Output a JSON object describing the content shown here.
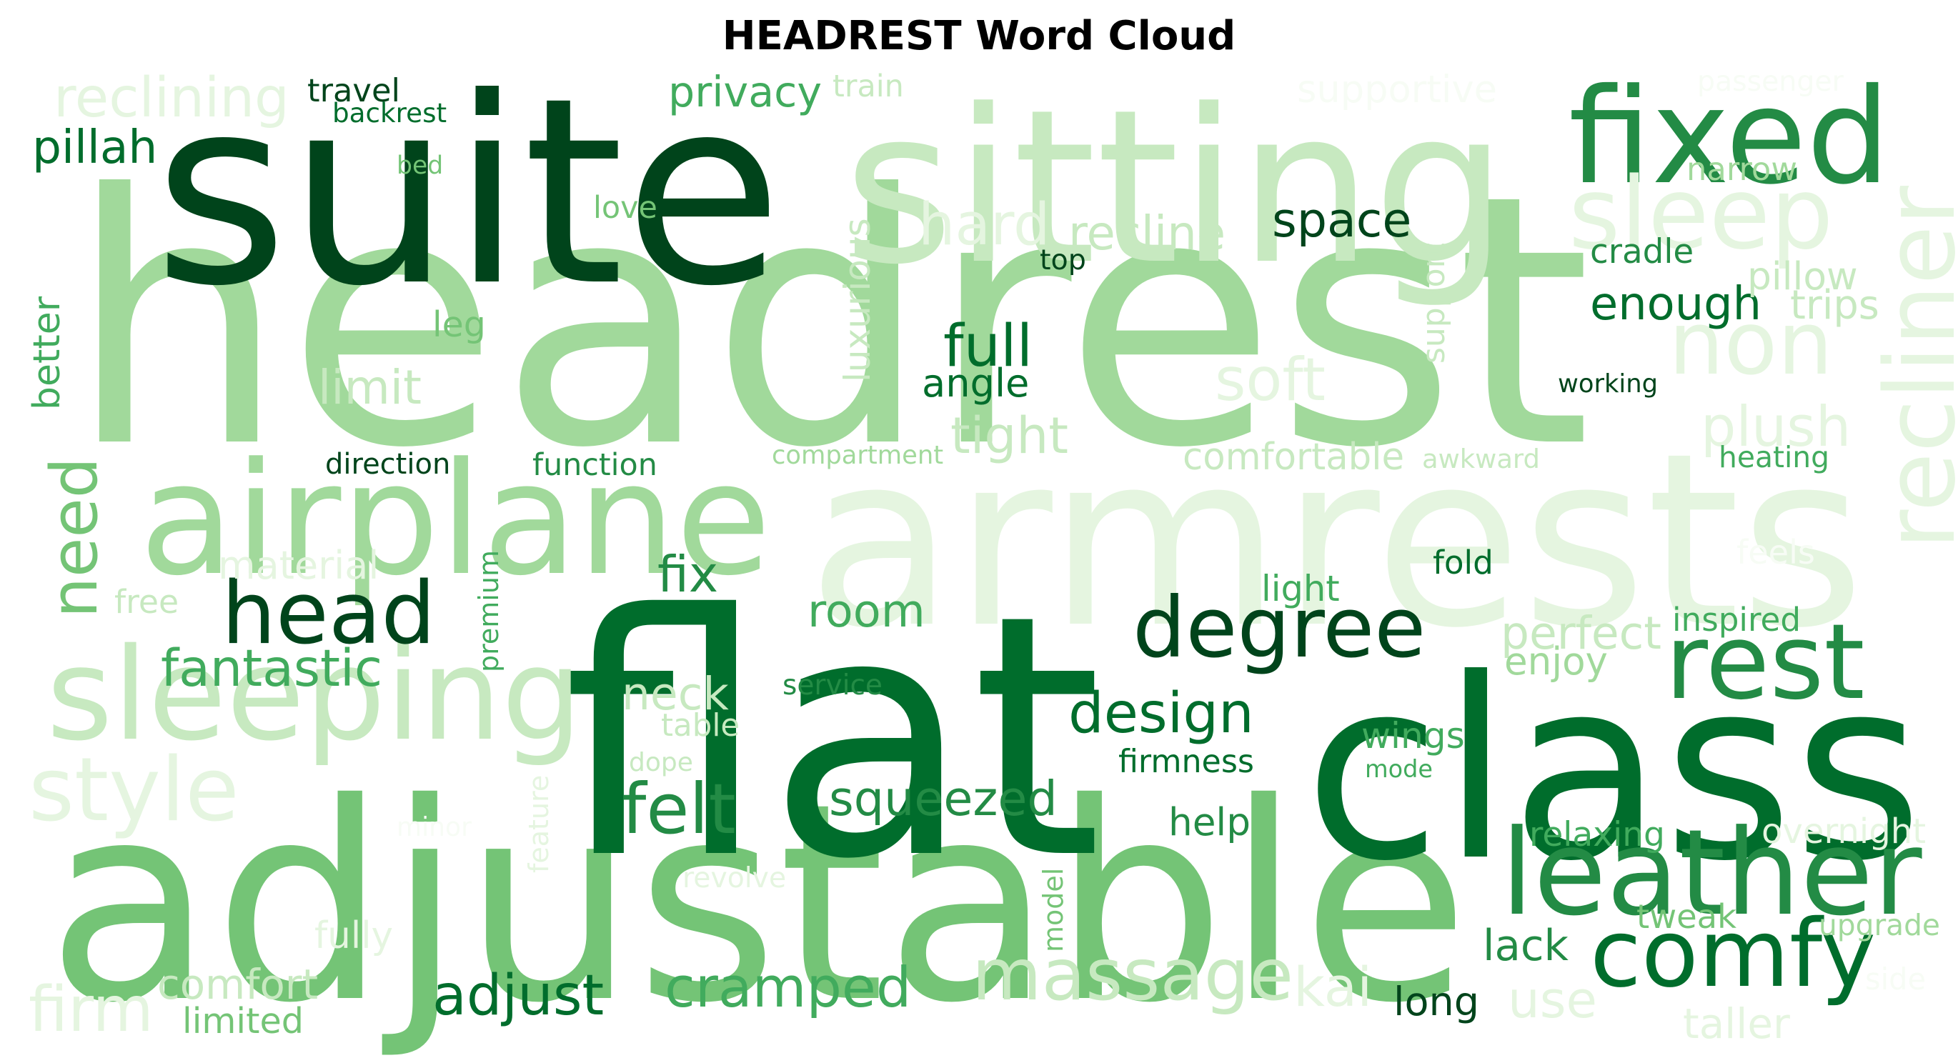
{
  "title": "HEADREST Word Cloud",
  "palette": [
    "#f7fcf5",
    "#e5f5e0",
    "#c7e9c0",
    "#a1d99b",
    "#74c476",
    "#41ab5d",
    "#238b45",
    "#006d2c",
    "#00441b"
  ],
  "words": [
    {
      "text": "headrest",
      "color": "#a1d99b"
    },
    {
      "text": "armrests",
      "color": "#e5f5e0"
    },
    {
      "text": "adjustable",
      "color": "#74c476"
    },
    {
      "text": "flat",
      "color": "#006d2c"
    },
    {
      "text": "class",
      "color": "#006d2c"
    },
    {
      "text": "suite",
      "color": "#00441b"
    },
    {
      "text": "sitting",
      "color": "#c7e9c0"
    },
    {
      "text": "airplane",
      "color": "#a1d99b"
    },
    {
      "text": "sleeping",
      "color": "#c7e9c0"
    },
    {
      "text": "fixed",
      "color": "#238b45"
    },
    {
      "text": "leather",
      "color": "#238b45"
    },
    {
      "text": "comfy",
      "color": "#006d2c"
    },
    {
      "text": "degree",
      "color": "#00441b"
    },
    {
      "text": "head",
      "color": "#00441b"
    },
    {
      "text": "recliner",
      "color": "#e5f5e0"
    },
    {
      "text": "non",
      "color": "#e5f5e0"
    },
    {
      "text": "sleep",
      "color": "#e5f5e0"
    },
    {
      "text": "rest",
      "color": "#238b45"
    },
    {
      "text": "massage",
      "color": "#c7e9c0"
    },
    {
      "text": "need",
      "color": "#74c476"
    },
    {
      "text": "style",
      "color": "#e5f5e0"
    },
    {
      "text": "design",
      "color": "#006d2c"
    },
    {
      "text": "cramped",
      "color": "#41ab5d"
    },
    {
      "text": "squeezed",
      "color": "#238b45"
    },
    {
      "text": "space",
      "color": "#00441b"
    },
    {
      "text": "enough",
      "color": "#006d2c"
    },
    {
      "text": "soft",
      "color": "#e5f5e0"
    },
    {
      "text": "hard",
      "color": "#e5f5e0"
    },
    {
      "text": "recline",
      "color": "#c7e9c0"
    },
    {
      "text": "felt",
      "color": "#238b45"
    },
    {
      "text": "adjust",
      "color": "#006d2c"
    },
    {
      "text": "room",
      "color": "#41ab5d"
    },
    {
      "text": "neck",
      "color": "#c7e9c0"
    },
    {
      "text": "fantastic",
      "color": "#41ab5d"
    },
    {
      "text": "plush",
      "color": "#e5f5e0"
    },
    {
      "text": "reclining",
      "color": "#e5f5e0"
    },
    {
      "text": "privacy",
      "color": "#41ab5d"
    },
    {
      "text": "luxurious",
      "color": "#c7e9c0"
    },
    {
      "text": "support",
      "color": "#c7e9c0"
    },
    {
      "text": "better",
      "color": "#41ab5d"
    },
    {
      "text": "full",
      "color": "#006d2c"
    },
    {
      "text": "angle",
      "color": "#006d2c"
    },
    {
      "text": "tight",
      "color": "#c7e9c0"
    },
    {
      "text": "comfortable",
      "color": "#c7e9c0"
    },
    {
      "text": "comfort",
      "color": "#c7e9c0"
    },
    {
      "text": "firm",
      "color": "#e5f5e0"
    },
    {
      "text": "perfect",
      "color": "#c7e9c0"
    },
    {
      "text": "enjoy",
      "color": "#a1d99b"
    },
    {
      "text": "wings",
      "color": "#41ab5d"
    },
    {
      "text": "help",
      "color": "#238b45"
    },
    {
      "text": "lack",
      "color": "#238b45"
    },
    {
      "text": "long",
      "color": "#00441b"
    },
    {
      "text": "use",
      "color": "#e5f5e0"
    },
    {
      "text": "kai",
      "color": "#e5f5e0"
    },
    {
      "text": "tweak",
      "color": "#74c476"
    },
    {
      "text": "fix",
      "color": "#238b45"
    },
    {
      "text": "material",
      "color": "#e5f5e0"
    },
    {
      "text": "premium",
      "color": "#41ab5d"
    },
    {
      "text": "pillah",
      "color": "#006d2c"
    },
    {
      "text": "supportive",
      "color": "#f7fcf5"
    },
    {
      "text": "narrow",
      "color": "#a1d99b"
    },
    {
      "text": "travel",
      "color": "#00441b"
    },
    {
      "text": "backrest",
      "color": "#006d2c"
    },
    {
      "text": "bed",
      "color": "#74c476"
    },
    {
      "text": "love",
      "color": "#74c476"
    },
    {
      "text": "train",
      "color": "#c7e9c0"
    },
    {
      "text": "passenger",
      "color": "#f7fcf5"
    },
    {
      "text": "cradle",
      "color": "#238b45"
    },
    {
      "text": "pillow",
      "color": "#c7e9c0"
    },
    {
      "text": "trips",
      "color": "#c7e9c0"
    },
    {
      "text": "top",
      "color": "#00441b"
    },
    {
      "text": "leg",
      "color": "#74c476"
    },
    {
      "text": "limit",
      "color": "#c7e9c0"
    },
    {
      "text": "working",
      "color": "#00441b"
    },
    {
      "text": "direction",
      "color": "#00441b"
    },
    {
      "text": "function",
      "color": "#238b45"
    },
    {
      "text": "compartment",
      "color": "#a1d99b"
    },
    {
      "text": "awkward",
      "color": "#c7e9c0"
    },
    {
      "text": "heating",
      "color": "#41ab5d"
    },
    {
      "text": "free",
      "color": "#c7e9c0"
    },
    {
      "text": "fold",
      "color": "#006d2c"
    },
    {
      "text": "light",
      "color": "#41ab5d"
    },
    {
      "text": "feels",
      "color": "#f7fcf5"
    },
    {
      "text": "inspired",
      "color": "#41ab5d"
    },
    {
      "text": "service",
      "color": "#238b45"
    },
    {
      "text": "table",
      "color": "#c7e9c0"
    },
    {
      "text": "dope",
      "color": "#c7e9c0"
    },
    {
      "text": "firmness",
      "color": "#006d2c"
    },
    {
      "text": "mode",
      "color": "#41ab5d"
    },
    {
      "text": "feature",
      "color": "#e5f5e0"
    },
    {
      "text": "minor",
      "color": "#f7fcf5"
    },
    {
      "text": "revolve",
      "color": "#e5f5e0"
    },
    {
      "text": "model",
      "color": "#74c476"
    },
    {
      "text": "relaxing",
      "color": "#41ab5d"
    },
    {
      "text": "overnight",
      "color": "#e5f5e0"
    },
    {
      "text": "upgrade",
      "color": "#a1d99b"
    },
    {
      "text": "fully",
      "color": "#e5f5e0"
    },
    {
      "text": "limited",
      "color": "#74c476"
    },
    {
      "text": "side",
      "color": "#f7fcf5"
    },
    {
      "text": "taller",
      "color": "#e5f5e0"
    }
  ]
}
